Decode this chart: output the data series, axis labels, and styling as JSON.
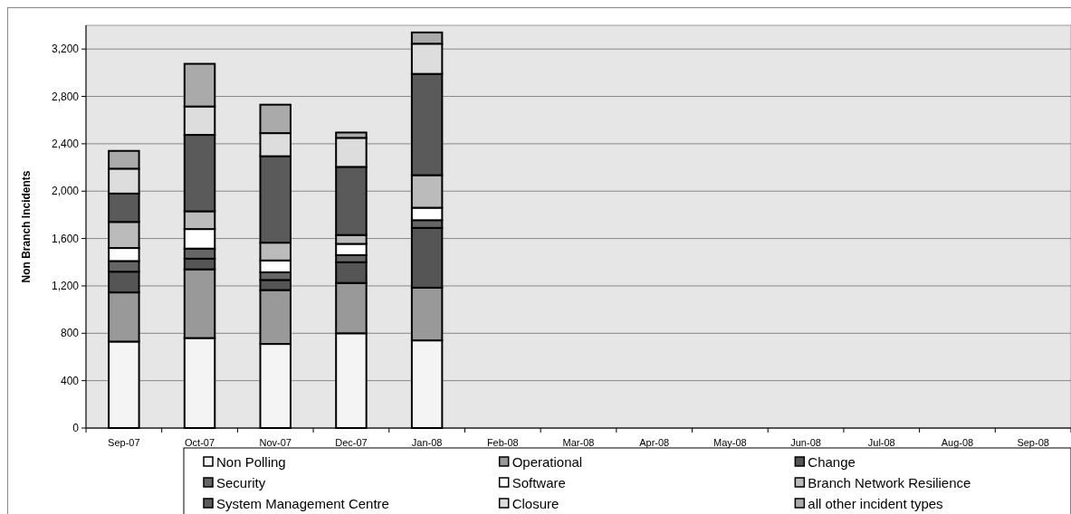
{
  "chart_data": {
    "type": "bar",
    "stacked": true,
    "ylabel": "Non Branch Incidents",
    "categories": [
      "Sep-07",
      "Oct-07",
      "Nov-07",
      "Dec-07",
      "Jan-08",
      "Feb-08",
      "Mar-08",
      "Apr-08",
      "May-08",
      "Jun-08",
      "Jul-08",
      "Aug-08",
      "Sep-08"
    ],
    "series": [
      {
        "name": "Non Polling",
        "color": "#f4f4f4",
        "values": [
          730,
          760,
          710,
          800,
          740,
          null,
          null,
          null,
          null,
          null,
          null,
          null,
          null
        ]
      },
      {
        "name": "Operational",
        "color": "#999999",
        "values": [
          415,
          580,
          455,
          425,
          445,
          null,
          null,
          null,
          null,
          null,
          null,
          null,
          null
        ]
      },
      {
        "name": "Change",
        "color": "#555555",
        "values": [
          175,
          90,
          85,
          175,
          505,
          null,
          null,
          null,
          null,
          null,
          null,
          null,
          null
        ]
      },
      {
        "name": "Security",
        "color": "#666666",
        "values": [
          90,
          85,
          65,
          60,
          65,
          null,
          null,
          null,
          null,
          null,
          null,
          null,
          null
        ]
      },
      {
        "name": "Software",
        "color": "#ffffff",
        "values": [
          110,
          165,
          100,
          95,
          105,
          null,
          null,
          null,
          null,
          null,
          null,
          null,
          null
        ]
      },
      {
        "name": "Branch Network Resilience",
        "color": "#bbbbbb",
        "values": [
          220,
          150,
          150,
          75,
          275,
          null,
          null,
          null,
          null,
          null,
          null,
          null,
          null
        ]
      },
      {
        "name": "System Management Centre",
        "color": "#5a5a5a",
        "values": [
          240,
          645,
          730,
          575,
          855,
          null,
          null,
          null,
          null,
          null,
          null,
          null,
          null
        ]
      },
      {
        "name": "Closure",
        "color": "#dddddd",
        "values": [
          210,
          240,
          195,
          245,
          255,
          null,
          null,
          null,
          null,
          null,
          null,
          null,
          null
        ]
      },
      {
        "name": "all other incident types",
        "color": "#aaaaaa",
        "values": [
          150,
          360,
          240,
          45,
          95,
          null,
          null,
          null,
          null,
          null,
          null,
          null,
          null
        ]
      }
    ],
    "ylim": [
      0,
      3400
    ],
    "yticks": [
      {
        "value": 0,
        "label": "0"
      },
      {
        "value": 400,
        "label": "400"
      },
      {
        "value": 800,
        "label": "800"
      },
      {
        "value": 1200,
        "label": "1,200"
      },
      {
        "value": 1600,
        "label": "1,600"
      },
      {
        "value": 2000,
        "label": "2,000"
      },
      {
        "value": 2400,
        "label": "2,400"
      },
      {
        "value": 2800,
        "label": "2,800"
      },
      {
        "value": 3200,
        "label": "3,200"
      }
    ],
    "grid": "y",
    "legend": "bottom"
  }
}
